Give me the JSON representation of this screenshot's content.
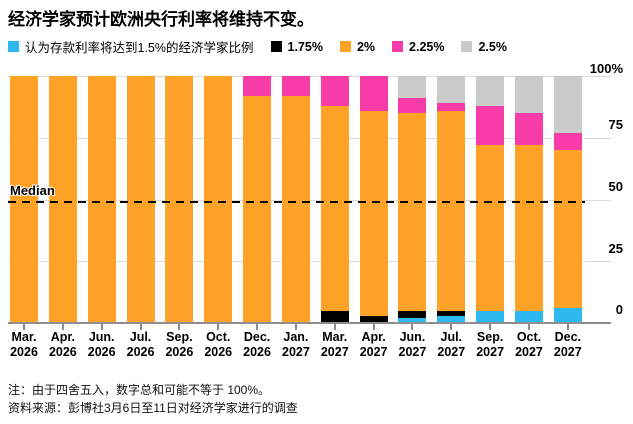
{
  "title": "经济学家预计欧洲央行利率将维持不变。",
  "colors": {
    "blue": "#2DB8F0",
    "black": "#000000",
    "orange": "#FFA227",
    "pink": "#F73CA9",
    "gray": "#CBCBCB"
  },
  "chart_data": {
    "type": "bar",
    "subtype": "stacked-vertical",
    "title": "经济学家预计欧洲央行利率将维持不变。",
    "categories": [
      "Mar. 2026",
      "Apr. 2026",
      "Jun. 2026",
      "Jul. 2026",
      "Sep. 2026",
      "Oct. 2026",
      "Dec. 2026",
      "Jan. 2027",
      "Mar. 2027",
      "Apr. 2027",
      "Jun. 2027",
      "Jul. 2027",
      "Sep. 2027",
      "Oct. 2027",
      "Dec. 2027"
    ],
    "series": [
      {
        "name": "1.5%",
        "label": "认为存款利率将达到1.5%的经济学家比例",
        "color": "blue",
        "values": [
          0,
          0,
          0,
          0,
          0,
          0,
          0,
          0,
          0,
          0,
          2,
          3,
          5,
          5,
          6
        ]
      },
      {
        "name": "1.75%",
        "label": "1.75%",
        "color": "black",
        "values": [
          0,
          0,
          0,
          0,
          0,
          0,
          0,
          0,
          5,
          3,
          3,
          2,
          0,
          0,
          0
        ]
      },
      {
        "name": "2%",
        "label": "2%",
        "color": "orange",
        "values": [
          100,
          100,
          100,
          100,
          100,
          100,
          92,
          92,
          83,
          83,
          80,
          81,
          67,
          67,
          64
        ]
      },
      {
        "name": "2.25%",
        "label": "2.25%",
        "color": "pink",
        "values": [
          0,
          0,
          0,
          0,
          0,
          0,
          8,
          8,
          12,
          14,
          6,
          3,
          16,
          13,
          7
        ]
      },
      {
        "name": "2.5%",
        "label": "2.5%",
        "color": "gray",
        "values": [
          0,
          0,
          0,
          0,
          0,
          0,
          0,
          0,
          0,
          0,
          9,
          11,
          12,
          15,
          23
        ]
      }
    ],
    "yticks": [
      "100%",
      "75",
      "50",
      "25",
      "0"
    ],
    "ylim": [
      0,
      100
    ],
    "grid": "horizontal",
    "legend_position": "top",
    "median": {
      "label": "Median",
      "value": 49
    }
  },
  "footer": {
    "note": "注：由于四舍五入，数字总和可能不等于 100%。",
    "source": "资料来源：彭博社3月6日至11日对经济学家进行的调查"
  }
}
